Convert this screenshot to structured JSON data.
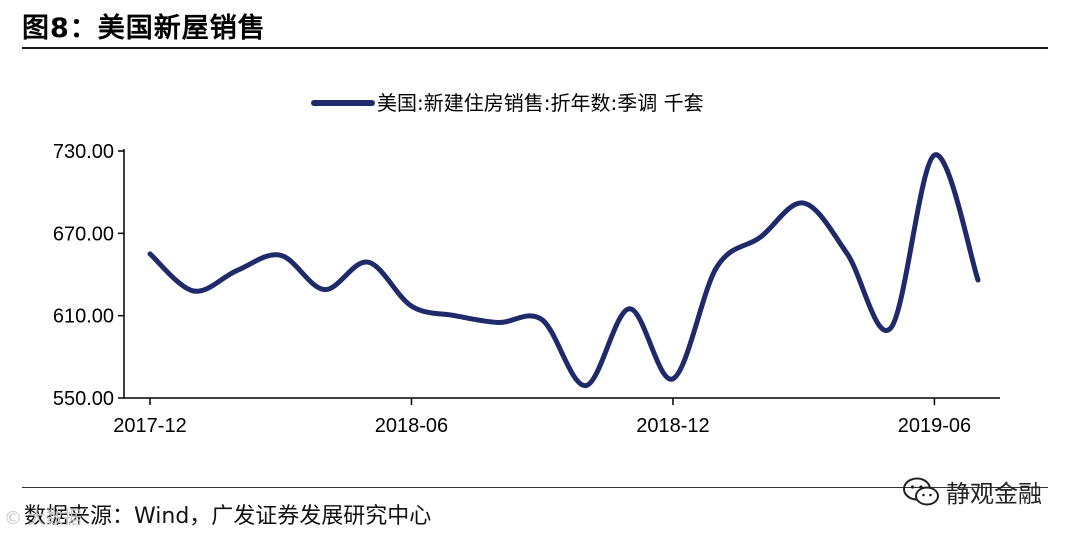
{
  "figure": {
    "title": "图8：美国新屋销售",
    "source": "数据来源：Wind，广发证券发展研究中心",
    "watermark": "静观金融",
    "corner_watermark": "© 大数据"
  },
  "chart_data": {
    "type": "line",
    "title": "",
    "xlabel": "",
    "ylabel": "",
    "ylim": [
      550,
      730
    ],
    "yticks": [
      "730.00",
      "670.00",
      "610.00",
      "550.00"
    ],
    "ytick_values": [
      730,
      670,
      610,
      550
    ],
    "xticks": [
      "2017-12",
      "2018-06",
      "2018-12",
      "2019-06"
    ],
    "xtick_index": [
      0,
      6,
      12,
      18
    ],
    "grid": false,
    "legend_position": "top-center",
    "series": [
      {
        "name": "美国:新建住房销售:折年数:季调 千套",
        "color": "#1f2a6b",
        "x": [
          "2017-12",
          "2018-01",
          "2018-02",
          "2018-03",
          "2018-04",
          "2018-05",
          "2018-06",
          "2018-07",
          "2018-08",
          "2018-09",
          "2018-10",
          "2018-11",
          "2018-12",
          "2019-01",
          "2019-02",
          "2019-03",
          "2019-04",
          "2019-05",
          "2019-06",
          "2019-07"
        ],
        "values": [
          655,
          628,
          643,
          654,
          629,
          649,
          617,
          610,
          605,
          607,
          559,
          615,
          564,
          645,
          667,
          692,
          655,
          601,
          727,
          636
        ]
      }
    ]
  }
}
